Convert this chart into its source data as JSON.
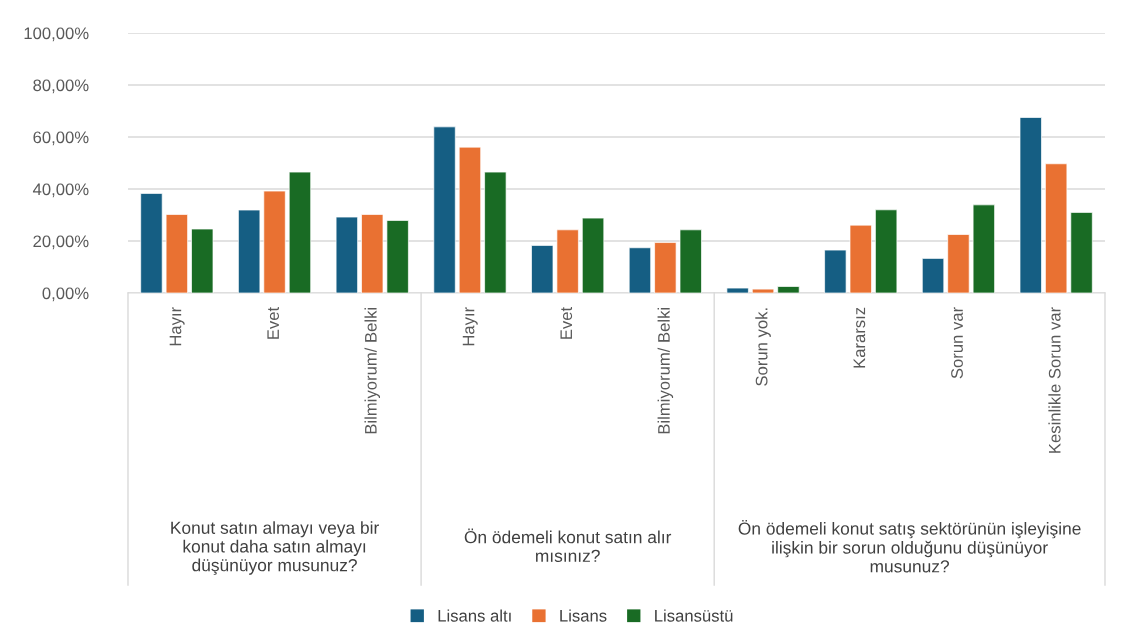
{
  "chart_data": {
    "type": "bar",
    "categories": [
      "Hayır",
      "Evet",
      "Bilmiyorum/ Belki",
      "Hayır",
      "Evet",
      "Bilmiyorum/ Belki",
      "Sorun yok.",
      "Kararsız",
      "Sorun var",
      "Kesinlikle Sorun var"
    ],
    "series": [
      {
        "name": "Lisans altı",
        "color": "#155e83",
        "values": [
          38.3,
          31.9,
          29.2,
          63.9,
          18.3,
          17.4,
          1.9,
          16.5,
          13.3,
          67.5
        ]
      },
      {
        "name": "Lisans",
        "color": "#e97132",
        "values": [
          30.2,
          39.2,
          30.2,
          56.1,
          24.3,
          19.4,
          1.5,
          26.1,
          22.5,
          49.7
        ]
      },
      {
        "name": "Lisansüstü",
        "color": "#196b24",
        "values": [
          24.6,
          46.5,
          27.9,
          46.5,
          28.8,
          24.3,
          2.5,
          32.0,
          33.9,
          31.0
        ]
      }
    ],
    "annotations": [
      "Konut satın almayı veya bir konut daha satın almayı düşünüyor musunuz?",
      "Ön ödemeli konut satın alır mısınız?",
      "Ön ödemeli konut satış sektörünün işleyişine ilişkin bir sorun olduğunu düşünüyor musunuz?"
    ],
    "ylim": [
      0,
      100
    ],
    "yticks": [
      {
        "value": 0,
        "label": "0,00%"
      },
      {
        "value": 20,
        "label": "20,00%"
      },
      {
        "value": 40,
        "label": "40,00%"
      },
      {
        "value": 60,
        "label": "60,00%"
      },
      {
        "value": 80,
        "label": "80,00%"
      },
      {
        "value": 100,
        "label": "100,00%"
      }
    ],
    "grid": "y",
    "legend": "bottom"
  }
}
